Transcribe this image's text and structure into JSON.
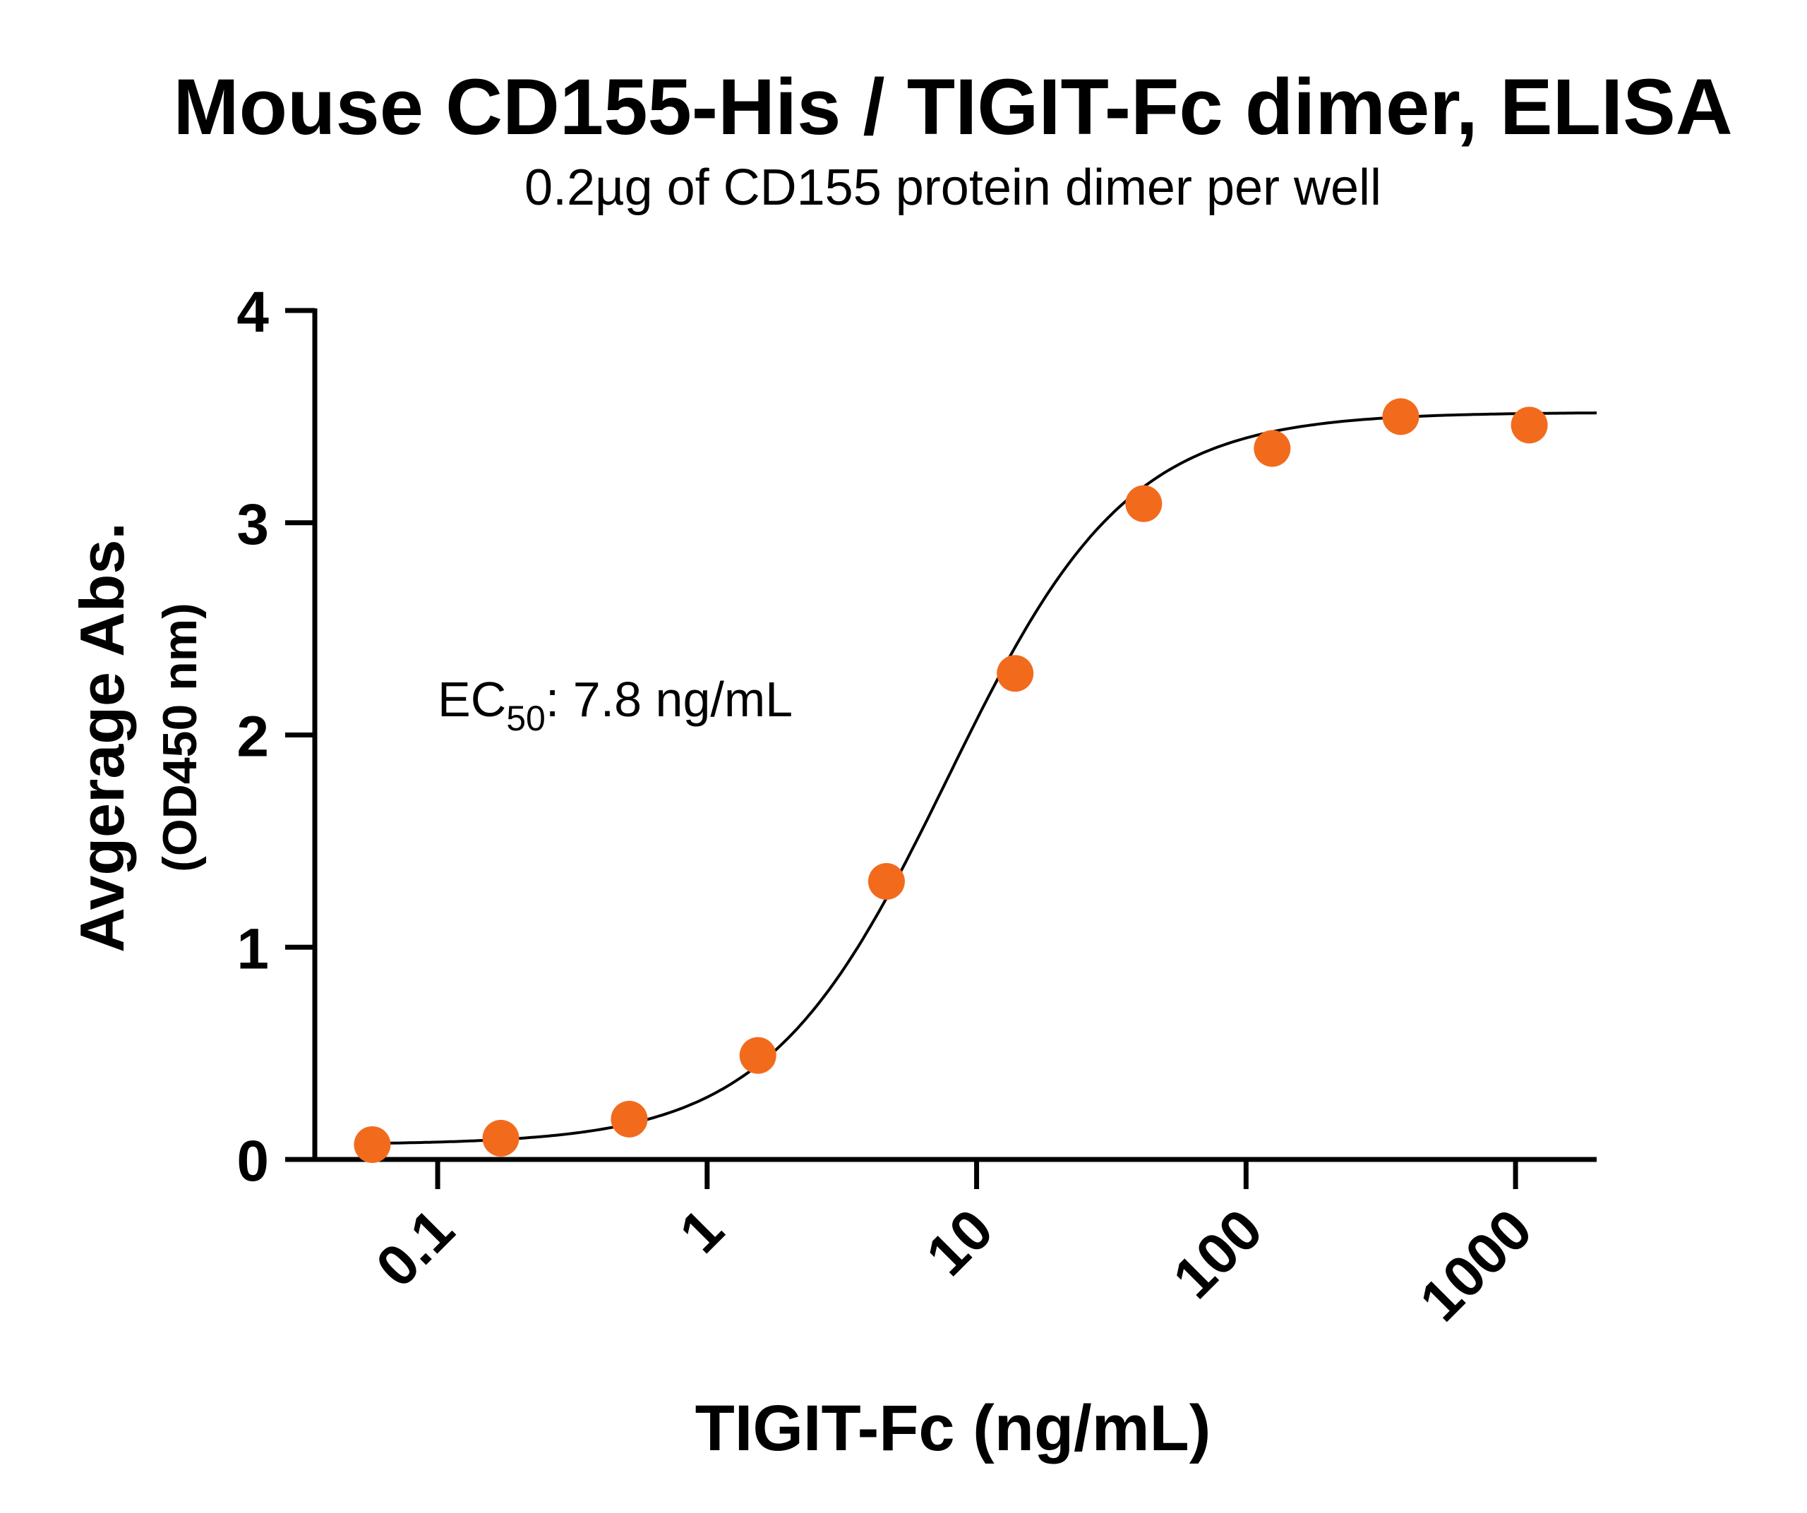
{
  "chart_data": {
    "type": "scatter",
    "title": "Mouse CD155-His / TIGIT-Fc dimer, ELISA",
    "subtitle": "0.2µg of CD155 protein dimer per well",
    "xlabel": "TIGIT-Fc (ng/mL)",
    "ylabel_line1": "Avgerage Abs.",
    "ylabel_line2": "(OD450 nm)",
    "x_scale": "log",
    "xlim": [
      0.035,
      2000
    ],
    "ylim": [
      0,
      4
    ],
    "x_ticks": [
      0.1,
      1,
      10,
      100,
      1000
    ],
    "x_tick_labels": [
      "0.1",
      "1",
      "10",
      "100",
      "1000"
    ],
    "y_ticks": [
      0,
      1,
      2,
      3,
      4
    ],
    "y_tick_labels": [
      "0",
      "1",
      "2",
      "3",
      "4"
    ],
    "grid": false,
    "annotation": {
      "prefix": "EC",
      "subscript": "50",
      "suffix": ": 7.8 ng/mL"
    },
    "marker_color": "#f26b1d",
    "curve_color": "#000000",
    "series": [
      {
        "x": [
          0.0572,
          0.1715,
          0.514,
          1.543,
          4.63,
          13.9,
          41.7,
          125,
          375,
          1125
        ],
        "y": [
          0.07,
          0.1,
          0.19,
          0.49,
          1.31,
          2.29,
          3.09,
          3.35,
          3.5,
          3.46
        ]
      }
    ],
    "fit": {
      "model": "4PL",
      "bottom": 0.07,
      "top": 3.52,
      "ec50": 7.8,
      "hill": 1.3,
      "x_range": [
        0.0572,
        2000
      ]
    }
  }
}
